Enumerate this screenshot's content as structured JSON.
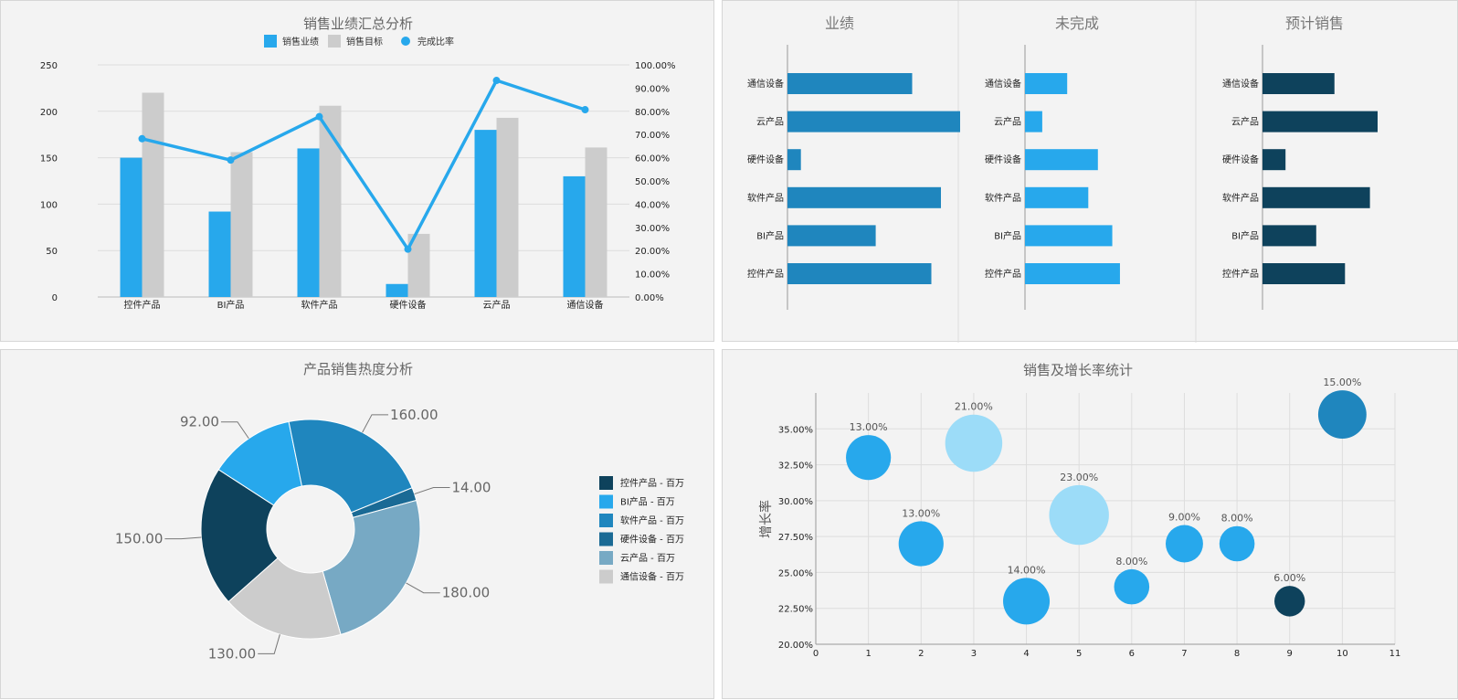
{
  "colors": {
    "blue": "#27a8ec",
    "gray": "#cccccc",
    "mid_blue": "#1f86be",
    "navy": "#0e425c",
    "dark_blue": "#1a6a95",
    "light_steel": "#77a9c4",
    "light_blue": "#9cdcf8"
  },
  "chart_data": [
    {
      "type": "bar",
      "title": "销售业绩汇总分析",
      "categories": [
        "控件产品",
        "BI产品",
        "软件产品",
        "硬件设备",
        "云产品",
        "通信设备"
      ],
      "series": [
        {
          "name": "销售业绩",
          "type": "bar",
          "values": [
            150,
            92,
            160,
            14,
            180,
            130
          ]
        },
        {
          "name": "销售目标",
          "type": "bar",
          "values": [
            220,
            156,
            206,
            68,
            193,
            161
          ]
        },
        {
          "name": "完成比率",
          "type": "line",
          "axis": "right",
          "values": [
            68.2,
            59.0,
            77.7,
            20.6,
            93.3,
            80.7
          ]
        }
      ],
      "ylim": [
        0,
        250
      ],
      "yticks": [
        "0",
        "50",
        "100",
        "150",
        "200",
        "250"
      ],
      "y2lim": [
        0,
        100
      ],
      "y2ticks": [
        "0.00%",
        "10.00%",
        "20.00%",
        "30.00%",
        "40.00%",
        "50.00%",
        "60.00%",
        "70.00%",
        "80.00%",
        "90.00%",
        "100.00%"
      ],
      "legend": "top-center"
    },
    {
      "type": "bar",
      "orientation": "horizontal",
      "title": "业绩",
      "categories": [
        "通信设备",
        "云产品",
        "硬件设备",
        "软件产品",
        "BI产品",
        "控件产品"
      ],
      "values": [
        130,
        180,
        14,
        160,
        92,
        150
      ]
    },
    {
      "type": "bar",
      "orientation": "horizontal",
      "title": "未完成",
      "categories": [
        "通信设备",
        "云产品",
        "硬件设备",
        "软件产品",
        "BI产品",
        "控件产品"
      ],
      "values": [
        44,
        18,
        76,
        66,
        91,
        99
      ]
    },
    {
      "type": "bar",
      "orientation": "horizontal",
      "title": "预计销售",
      "categories": [
        "通信设备",
        "云产品",
        "硬件设备",
        "软件产品",
        "BI产品",
        "控件产品"
      ],
      "values": [
        75,
        120,
        24,
        112,
        56,
        86
      ]
    },
    {
      "type": "pie",
      "title": "产品销售热度分析",
      "donut": true,
      "slices": [
        {
          "name": "控件产品 - 百万",
          "value": 150,
          "label": "150.00"
        },
        {
          "name": "BI产品 - 百万",
          "value": 92,
          "label": "92.00"
        },
        {
          "name": "软件产品 - 百万",
          "value": 160,
          "label": "160.00"
        },
        {
          "name": "硬件设备 - 百万",
          "value": 14,
          "label": "14.00"
        },
        {
          "name": "云产品 - 百万",
          "value": 180,
          "label": "180.00"
        },
        {
          "name": "通信设备 - 百万",
          "value": 130,
          "label": "130.00"
        }
      ],
      "legend": "right"
    },
    {
      "type": "scatter",
      "bubble": true,
      "title": "销售及增长率统计",
      "ylabel": "增长率",
      "xlim": [
        0,
        11
      ],
      "ylim": [
        20,
        37.5
      ],
      "xticks": [
        "0",
        "1",
        "2",
        "3",
        "4",
        "5",
        "6",
        "7",
        "8",
        "9",
        "10",
        "11"
      ],
      "yticks": [
        "20.00%",
        "22.50%",
        "25.00%",
        "27.50%",
        "30.00%",
        "32.50%",
        "35.00%"
      ],
      "points": [
        {
          "x": 1,
          "y": 33.0,
          "size": 13,
          "label": "13.00%"
        },
        {
          "x": 2,
          "y": 27.0,
          "size": 13,
          "label": "13.00%"
        },
        {
          "x": 3,
          "y": 34.0,
          "size": 21,
          "label": "21.00%"
        },
        {
          "x": 4,
          "y": 23.0,
          "size": 14,
          "label": "14.00%"
        },
        {
          "x": 5,
          "y": 29.0,
          "size": 23,
          "label": "23.00%"
        },
        {
          "x": 6,
          "y": 24.0,
          "size": 8,
          "label": "8.00%"
        },
        {
          "x": 7,
          "y": 27.0,
          "size": 9,
          "label": "9.00%"
        },
        {
          "x": 8,
          "y": 27.0,
          "size": 8,
          "label": "8.00%"
        },
        {
          "x": 9,
          "y": 23.0,
          "size": 6,
          "label": "6.00%"
        },
        {
          "x": 10,
          "y": 36.0,
          "size": 15,
          "label": "15.00%"
        }
      ],
      "grid": true
    }
  ]
}
